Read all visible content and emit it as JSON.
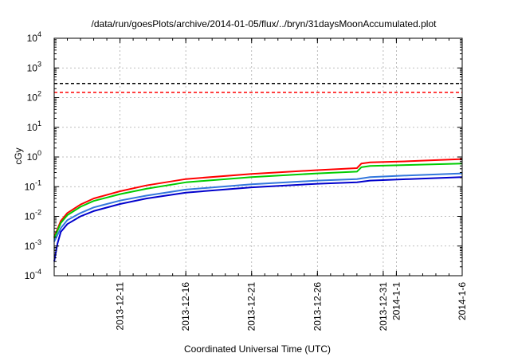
{
  "chart_data": {
    "type": "line",
    "title": "/data/run/goesPlots/archive/2014-01-05/flux/../bryn/31daysMoonAccumulated.plot",
    "xlabel": "Coordinated Universal Time (UTC)",
    "ylabel": "cGy",
    "yscale": "log",
    "grid": true,
    "ylim": [
      0.0001,
      10000
    ],
    "xlim": [
      "2013-12-06",
      "2014-01-06"
    ],
    "x_ticks": [
      {
        "date": "2013-12-11",
        "label": "2013-12-11"
      },
      {
        "date": "2013-12-16",
        "label": "2013-12-16"
      },
      {
        "date": "2013-12-21",
        "label": "2013-12-21"
      },
      {
        "date": "2013-12-26",
        "label": "2013-12-26"
      },
      {
        "date": "2013-12-31",
        "label": "2013-12-31"
      },
      {
        "date": "2014-01-01",
        "label": "2014-1-1"
      },
      {
        "date": "2014-01-06",
        "label": "2014-1-6"
      }
    ],
    "y_ticks": [
      {
        "value": 0.0001,
        "base": "10",
        "exp": "-4"
      },
      {
        "value": 0.001,
        "base": "10",
        "exp": "-3"
      },
      {
        "value": 0.01,
        "base": "10",
        "exp": "-2"
      },
      {
        "value": 0.1,
        "base": "10",
        "exp": "-1"
      },
      {
        "value": 1,
        "base": "10",
        "exp": "0"
      },
      {
        "value": 10,
        "base": "10",
        "exp": "1"
      },
      {
        "value": 100,
        "base": "10",
        "exp": "2"
      },
      {
        "value": 1000,
        "base": "10",
        "exp": "3"
      },
      {
        "value": 10000,
        "base": "10",
        "exp": "4"
      }
    ],
    "reference_lines": [
      {
        "y": 300,
        "color": "#000000",
        "style": "dashed"
      },
      {
        "y": 150,
        "color": "#ff0000",
        "style": "dashed"
      }
    ],
    "series": [
      {
        "color": "#ff0000",
        "x": [
          "2013-12-06",
          "2013-12-06T12:00",
          "2013-12-07",
          "2013-12-08",
          "2013-12-09",
          "2013-12-11",
          "2013-12-13",
          "2013-12-16",
          "2013-12-21",
          "2013-12-26",
          "2013-12-29",
          "2013-12-29T08:00",
          "2013-12-30",
          "2014-01-02",
          "2014-01-06"
        ],
        "y": [
          0.002,
          0.007,
          0.013,
          0.025,
          0.04,
          0.07,
          0.11,
          0.18,
          0.27,
          0.36,
          0.42,
          0.6,
          0.66,
          0.72,
          0.85
        ]
      },
      {
        "color": "#00cc00",
        "x": [
          "2013-12-06",
          "2013-12-06T12:00",
          "2013-12-07",
          "2013-12-08",
          "2013-12-09",
          "2013-12-11",
          "2013-12-13",
          "2013-12-16",
          "2013-12-21",
          "2013-12-26",
          "2013-12-29",
          "2013-12-29T08:00",
          "2013-12-30",
          "2014-01-02",
          "2014-01-06"
        ],
        "y": [
          0.0018,
          0.006,
          0.011,
          0.021,
          0.033,
          0.056,
          0.085,
          0.14,
          0.21,
          0.28,
          0.32,
          0.45,
          0.5,
          0.54,
          0.6
        ]
      },
      {
        "color": "#3377dd",
        "x": [
          "2013-12-06",
          "2013-12-06T12:00",
          "2013-12-07",
          "2013-12-08",
          "2013-12-09",
          "2013-12-11",
          "2013-12-13",
          "2013-12-16",
          "2013-12-21",
          "2013-12-26",
          "2013-12-29",
          "2013-12-30",
          "2014-01-02",
          "2014-01-06"
        ],
        "y": [
          0.0014,
          0.004,
          0.0075,
          0.013,
          0.02,
          0.034,
          0.05,
          0.08,
          0.12,
          0.16,
          0.18,
          0.21,
          0.24,
          0.28
        ]
      },
      {
        "color": "#0000cc",
        "x": [
          "2013-12-06",
          "2013-12-06T06:00",
          "2013-12-06T12:00",
          "2013-12-07",
          "2013-12-08",
          "2013-12-09",
          "2013-12-11",
          "2013-12-13",
          "2013-12-16",
          "2013-12-21",
          "2013-12-26",
          "2013-12-29",
          "2013-12-30",
          "2014-01-02",
          "2014-01-06"
        ],
        "y": [
          0.0003,
          0.0012,
          0.003,
          0.0055,
          0.01,
          0.015,
          0.026,
          0.04,
          0.063,
          0.095,
          0.125,
          0.14,
          0.16,
          0.18,
          0.21
        ]
      }
    ]
  }
}
